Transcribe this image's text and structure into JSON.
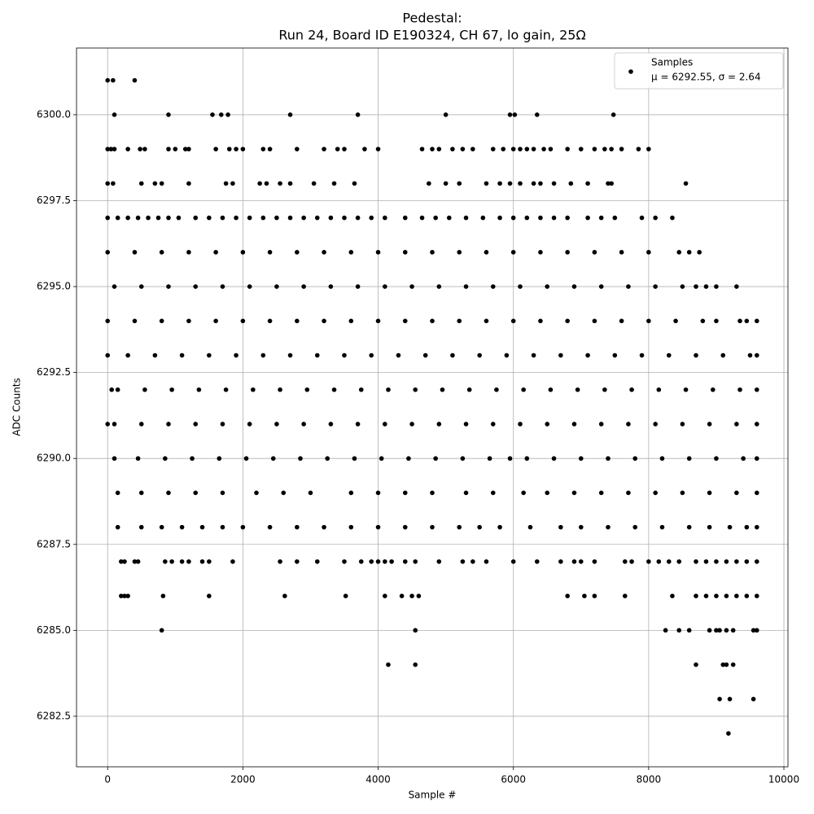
{
  "chart_data": {
    "type": "scatter",
    "title": "Pedestal:",
    "subtitle": "Run 24, Board ID E190324, CH 67, lo gain, 25Ω",
    "xlabel": "Sample #",
    "ylabel": "ADC Counts",
    "xlim": [
      -460,
      10060
    ],
    "ylim": [
      6281.03,
      6301.94
    ],
    "xticks": [
      0,
      2000,
      4000,
      6000,
      8000,
      10000
    ],
    "yticks": [
      {
        "value": 6282.5,
        "label": "6282.5"
      },
      {
        "value": 6285,
        "label": "6285.0"
      },
      {
        "value": 6287.5,
        "label": "6287.5"
      },
      {
        "value": 6290,
        "label": "6290.0"
      },
      {
        "value": 6292.5,
        "label": "6292.5"
      },
      {
        "value": 6295,
        "label": "6295.0"
      },
      {
        "value": 6297.5,
        "label": "6297.5"
      },
      {
        "value": 6300,
        "label": "6300.0"
      }
    ],
    "grid": true,
    "legend_loc": "upper right",
    "legend_note": "μ = 6292.55, σ = 2.64",
    "series": [
      {
        "name": "Samples",
        "color": "#000000",
        "x": [
          0,
          80,
          400,
          100,
          900,
          1550,
          1680,
          1780,
          2700,
          3700,
          5000,
          5950,
          6020,
          6350,
          7480,
          0,
          50,
          100,
          300,
          480,
          550,
          900,
          1000,
          1150,
          1200,
          1600,
          1800,
          1900,
          2000,
          2300,
          2400,
          2800,
          3200,
          3400,
          3500,
          3800,
          4000,
          4650,
          4800,
          4900,
          5100,
          5250,
          5400,
          5700,
          5850,
          6000,
          6100,
          6200,
          6300,
          6450,
          6550,
          6800,
          7000,
          7200,
          7350,
          7450,
          7600,
          7850,
          8000,
          0,
          80,
          500,
          700,
          800,
          1200,
          1750,
          1850,
          2250,
          2350,
          2550,
          2700,
          3050,
          3350,
          3650,
          4750,
          5000,
          5200,
          5600,
          5800,
          5950,
          6100,
          6300,
          6400,
          6600,
          6850,
          7100,
          7400,
          7450,
          8550,
          0,
          150,
          300,
          450,
          600,
          750,
          900,
          1050,
          1300,
          1500,
          1700,
          1900,
          2100,
          2300,
          2500,
          2700,
          2900,
          3100,
          3300,
          3500,
          3700,
          3900,
          4100,
          4400,
          4650,
          4850,
          5050,
          5300,
          5550,
          5800,
          6000,
          6200,
          6400,
          6600,
          6800,
          7100,
          7300,
          7500,
          7900,
          8100,
          8350,
          0,
          400,
          800,
          1200,
          1600,
          2000,
          2400,
          2800,
          3200,
          3600,
          4000,
          4400,
          4800,
          5200,
          5600,
          6000,
          6400,
          6800,
          7200,
          7600,
          8000,
          8450,
          8600,
          8750,
          100,
          500,
          900,
          1300,
          1700,
          2100,
          2500,
          2900,
          3300,
          3700,
          4100,
          4500,
          4900,
          5300,
          5700,
          6100,
          6500,
          6900,
          7300,
          7700,
          8100,
          8500,
          8700,
          8850,
          9000,
          9300,
          0,
          400,
          800,
          1200,
          1600,
          2000,
          2400,
          2800,
          3200,
          3600,
          4000,
          4400,
          4800,
          5200,
          5600,
          6000,
          6400,
          6800,
          7200,
          7600,
          8000,
          8400,
          8800,
          9000,
          9350,
          9450,
          9600,
          0,
          300,
          700,
          1100,
          1500,
          1900,
          2300,
          2700,
          3100,
          3500,
          3900,
          4300,
          4700,
          5100,
          5500,
          5900,
          6300,
          6700,
          7100,
          7500,
          7900,
          8300,
          8700,
          9100,
          9500,
          9600,
          60,
          150,
          550,
          950,
          1350,
          1750,
          2150,
          2550,
          2950,
          3350,
          3750,
          4150,
          4550,
          4950,
          5350,
          5750,
          6150,
          6550,
          6950,
          7350,
          7750,
          8150,
          8550,
          8950,
          9350,
          9600,
          0,
          100,
          500,
          900,
          1300,
          1700,
          2100,
          2500,
          2900,
          3300,
          3700,
          4100,
          4500,
          4900,
          5300,
          5700,
          6100,
          6500,
          6900,
          7300,
          7700,
          8100,
          8500,
          8900,
          9300,
          9600,
          100,
          450,
          850,
          1250,
          1650,
          2050,
          2450,
          2850,
          3250,
          3650,
          4050,
          4450,
          4850,
          5250,
          5650,
          5950,
          6200,
          6600,
          7000,
          7400,
          7800,
          8200,
          8600,
          9000,
          9400,
          9600,
          150,
          500,
          900,
          1300,
          1700,
          2200,
          2600,
          3000,
          3600,
          4000,
          4400,
          4800,
          5300,
          5700,
          6150,
          6500,
          6900,
          7300,
          7700,
          8100,
          8500,
          8900,
          9300,
          9600,
          150,
          500,
          800,
          1100,
          1400,
          1700,
          2000,
          2400,
          2800,
          3200,
          3600,
          4000,
          4400,
          4800,
          5200,
          5500,
          5800,
          6250,
          6700,
          7000,
          7400,
          7800,
          8200,
          8600,
          8900,
          9200,
          9450,
          9600,
          200,
          250,
          400,
          450,
          850,
          950,
          1100,
          1200,
          1400,
          1500,
          1850,
          2550,
          2800,
          3100,
          3500,
          3750,
          3900,
          4000,
          4100,
          4200,
          4400,
          4550,
          4900,
          5250,
          5400,
          5600,
          6000,
          6350,
          6700,
          6900,
          7000,
          7200,
          7650,
          7750,
          8000,
          8150,
          8300,
          8450,
          8700,
          8850,
          9000,
          9150,
          9300,
          9450,
          9600,
          200,
          250,
          300,
          820,
          1500,
          2620,
          3520,
          4100,
          4350,
          4500,
          4600,
          6800,
          7050,
          7200,
          7650,
          8350,
          8700,
          8850,
          9000,
          9150,
          9300,
          9450,
          9600,
          800,
          4550,
          8250,
          8450,
          8600,
          8900,
          9000,
          9050,
          9150,
          9250,
          9550,
          9600,
          4150,
          4550,
          8700,
          9100,
          9150,
          9250,
          9050,
          9200,
          9550,
          9180
        ],
        "values": [
          6301,
          6301,
          6301,
          6300,
          6300,
          6300,
          6300,
          6300,
          6300,
          6300,
          6300,
          6300,
          6300,
          6300,
          6300,
          6299,
          6299,
          6299,
          6299,
          6299,
          6299,
          6299,
          6299,
          6299,
          6299,
          6299,
          6299,
          6299,
          6299,
          6299,
          6299,
          6299,
          6299,
          6299,
          6299,
          6299,
          6299,
          6299,
          6299,
          6299,
          6299,
          6299,
          6299,
          6299,
          6299,
          6299,
          6299,
          6299,
          6299,
          6299,
          6299,
          6299,
          6299,
          6299,
          6299,
          6299,
          6299,
          6299,
          6299,
          6298,
          6298,
          6298,
          6298,
          6298,
          6298,
          6298,
          6298,
          6298,
          6298,
          6298,
          6298,
          6298,
          6298,
          6298,
          6298,
          6298,
          6298,
          6298,
          6298,
          6298,
          6298,
          6298,
          6298,
          6298,
          6298,
          6298,
          6298,
          6298,
          6298,
          6297,
          6297,
          6297,
          6297,
          6297,
          6297,
          6297,
          6297,
          6297,
          6297,
          6297,
          6297,
          6297,
          6297,
          6297,
          6297,
          6297,
          6297,
          6297,
          6297,
          6297,
          6297,
          6297,
          6297,
          6297,
          6297,
          6297,
          6297,
          6297,
          6297,
          6297,
          6297,
          6297,
          6297,
          6297,
          6297,
          6297,
          6297,
          6297,
          6297,
          6297,
          6296,
          6296,
          6296,
          6296,
          6296,
          6296,
          6296,
          6296,
          6296,
          6296,
          6296,
          6296,
          6296,
          6296,
          6296,
          6296,
          6296,
          6296,
          6296,
          6296,
          6296,
          6296,
          6296,
          6296,
          6295,
          6295,
          6295,
          6295,
          6295,
          6295,
          6295,
          6295,
          6295,
          6295,
          6295,
          6295,
          6295,
          6295,
          6295,
          6295,
          6295,
          6295,
          6295,
          6295,
          6295,
          6295,
          6295,
          6295,
          6295,
          6295,
          6294,
          6294,
          6294,
          6294,
          6294,
          6294,
          6294,
          6294,
          6294,
          6294,
          6294,
          6294,
          6294,
          6294,
          6294,
          6294,
          6294,
          6294,
          6294,
          6294,
          6294,
          6294,
          6294,
          6294,
          6294,
          6294,
          6294,
          6293,
          6293,
          6293,
          6293,
          6293,
          6293,
          6293,
          6293,
          6293,
          6293,
          6293,
          6293,
          6293,
          6293,
          6293,
          6293,
          6293,
          6293,
          6293,
          6293,
          6293,
          6293,
          6293,
          6293,
          6293,
          6293,
          6292,
          6292,
          6292,
          6292,
          6292,
          6292,
          6292,
          6292,
          6292,
          6292,
          6292,
          6292,
          6292,
          6292,
          6292,
          6292,
          6292,
          6292,
          6292,
          6292,
          6292,
          6292,
          6292,
          6292,
          6292,
          6292,
          6291,
          6291,
          6291,
          6291,
          6291,
          6291,
          6291,
          6291,
          6291,
          6291,
          6291,
          6291,
          6291,
          6291,
          6291,
          6291,
          6291,
          6291,
          6291,
          6291,
          6291,
          6291,
          6291,
          6291,
          6291,
          6291,
          6290,
          6290,
          6290,
          6290,
          6290,
          6290,
          6290,
          6290,
          6290,
          6290,
          6290,
          6290,
          6290,
          6290,
          6290,
          6290,
          6290,
          6290,
          6290,
          6290,
          6290,
          6290,
          6290,
          6290,
          6290,
          6290,
          6289,
          6289,
          6289,
          6289,
          6289,
          6289,
          6289,
          6289,
          6289,
          6289,
          6289,
          6289,
          6289,
          6289,
          6289,
          6289,
          6289,
          6289,
          6289,
          6289,
          6289,
          6289,
          6289,
          6289,
          6288,
          6288,
          6288,
          6288,
          6288,
          6288,
          6288,
          6288,
          6288,
          6288,
          6288,
          6288,
          6288,
          6288,
          6288,
          6288,
          6288,
          6288,
          6288,
          6288,
          6288,
          6288,
          6288,
          6288,
          6288,
          6288,
          6288,
          6288,
          6287,
          6287,
          6287,
          6287,
          6287,
          6287,
          6287,
          6287,
          6287,
          6287,
          6287,
          6287,
          6287,
          6287,
          6287,
          6287,
          6287,
          6287,
          6287,
          6287,
          6287,
          6287,
          6287,
          6287,
          6287,
          6287,
          6287,
          6287,
          6287,
          6287,
          6287,
          6287,
          6287,
          6287,
          6287,
          6287,
          6287,
          6287,
          6287,
          6287,
          6287,
          6287,
          6287,
          6287,
          6287,
          6286,
          6286,
          6286,
          6286,
          6286,
          6286,
          6286,
          6286,
          6286,
          6286,
          6286,
          6286,
          6286,
          6286,
          6286,
          6286,
          6286,
          6286,
          6286,
          6286,
          6286,
          6286,
          6286,
          6285,
          6285,
          6285,
          6285,
          6285,
          6285,
          6285,
          6285,
          6285,
          6285,
          6285,
          6285,
          6284,
          6284,
          6284,
          6284,
          6284,
          6284,
          6283,
          6283,
          6283,
          6282
        ]
      }
    ]
  }
}
